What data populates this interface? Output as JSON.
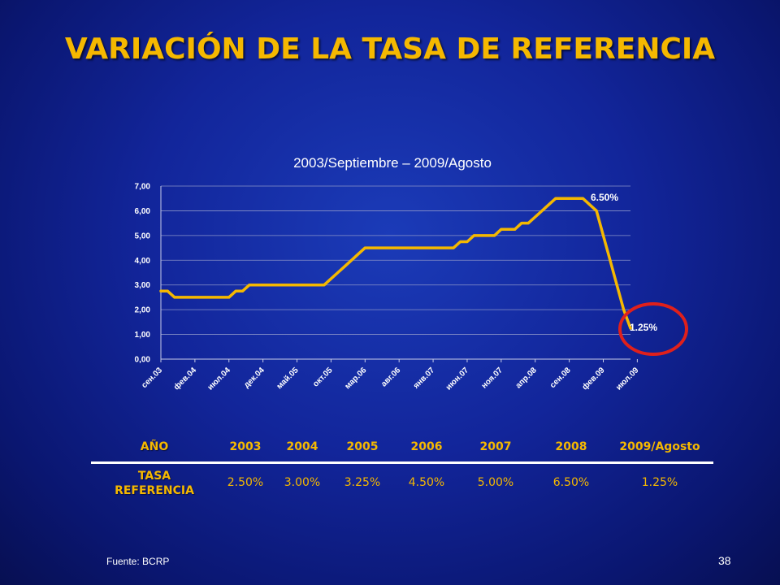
{
  "slide": {
    "title": "VARIACIÓN DE LA TASA DE REFERENCIA",
    "source": "Fuente: BCRP",
    "page_number": "38"
  },
  "chart_data": {
    "type": "line",
    "title": "2003/Septiembre – 2009/Agosto",
    "xlabel": "",
    "ylabel": "",
    "ylim": [
      0,
      7
    ],
    "yticks": [
      "0,00",
      "1,00",
      "2,00",
      "3,00",
      "4,00",
      "5,00",
      "6,00",
      "7,00"
    ],
    "tick_labels": [
      "сен.03",
      "фев.04",
      "июл.04",
      "дек.04",
      "май.05",
      "окт.05",
      "мар.06",
      "авг.06",
      "янв.07",
      "июн.07",
      "ноя.07",
      "апр.08",
      "сен.08",
      "фев.09",
      "июл.09"
    ],
    "grid": true,
    "line_color": "#f5b800",
    "series": [
      {
        "values": [
          2.75,
          2.75,
          2.5,
          2.5,
          2.5,
          2.5,
          2.5,
          2.5,
          2.5,
          2.5,
          2.5,
          2.75,
          2.75,
          3.0,
          3.0,
          3.0,
          3.0,
          3.0,
          3.0,
          3.0,
          3.0,
          3.0,
          3.0,
          3.0,
          3.0,
          3.25,
          3.5,
          3.75,
          4.0,
          4.25,
          4.5,
          4.5,
          4.5,
          4.5,
          4.5,
          4.5,
          4.5,
          4.5,
          4.5,
          4.5,
          4.5,
          4.5,
          4.5,
          4.5,
          4.75,
          4.75,
          5.0,
          5.0,
          5.0,
          5.0,
          5.25,
          5.25,
          5.25,
          5.5,
          5.5,
          5.75,
          6.0,
          6.25,
          6.5,
          6.5,
          6.5,
          6.5,
          6.5,
          6.25,
          6.0,
          5.0,
          4.0,
          3.0,
          2.0,
          1.25
        ]
      }
    ],
    "annotations": [
      {
        "text": "6.50%",
        "value": 6.5
      },
      {
        "text": "1.25%",
        "value": 1.25,
        "circled": true,
        "circle_color": "#e0201b"
      }
    ]
  },
  "table": {
    "header_label": "AÑO",
    "row_label_line1": "TASA",
    "row_label_line2": "REFERENCIA",
    "years": [
      "2003",
      "2004",
      "2005",
      "2006",
      "2007",
      "2008",
      "2009/Agosto"
    ],
    "rates": [
      "2.50%",
      "3.00%",
      "3.25%",
      "4.50%",
      "5.00%",
      "6.50%",
      "1.25%"
    ]
  }
}
